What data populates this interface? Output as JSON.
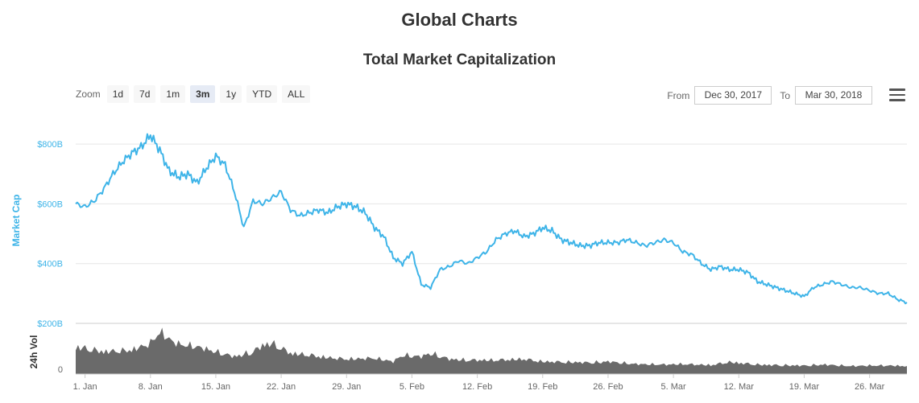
{
  "page": {
    "title": "Global Charts"
  },
  "toolbar": {
    "zoom_label": "Zoom",
    "zoom_buttons": [
      "1d",
      "7d",
      "1m",
      "3m",
      "1y",
      "YTD",
      "ALL"
    ],
    "active_zoom": "3m",
    "from_label": "From",
    "from_value": "Dec 30, 2017",
    "to_label": "To",
    "to_value": "Mar 30, 2018",
    "menu_icon": "hamburger-menu-icon"
  },
  "colors": {
    "line": "#3eb4e8",
    "volume": "#6a6a6a",
    "axis_label": "#3eb4e8",
    "grid": "#e6e6e6"
  },
  "chart_data": {
    "type": "line",
    "title": "Total Market Capitalization",
    "xlabel": "",
    "ylabel": "Market Cap",
    "ylim": [
      200,
      900
    ],
    "y_unit": "B USD",
    "y_ticks": [
      200,
      400,
      600,
      800
    ],
    "y_tick_labels": [
      "$200B",
      "$400B",
      "$600B",
      "$800B"
    ],
    "x_ticks": [
      {
        "day": 1,
        "label": "1. Jan"
      },
      {
        "day": 8,
        "label": "8. Jan"
      },
      {
        "day": 15,
        "label": "15. Jan"
      },
      {
        "day": 22,
        "label": "22. Jan"
      },
      {
        "day": 29,
        "label": "29. Jan"
      },
      {
        "day": 36,
        "label": "5. Feb"
      },
      {
        "day": 43,
        "label": "12. Feb"
      },
      {
        "day": 50,
        "label": "19. Feb"
      },
      {
        "day": 57,
        "label": "26. Feb"
      },
      {
        "day": 64,
        "label": "5. Mar"
      },
      {
        "day": 71,
        "label": "12. Mar"
      },
      {
        "day": 78,
        "label": "19. Mar"
      },
      {
        "day": 85,
        "label": "26. Mar"
      }
    ],
    "x_range_days": [
      0,
      89
    ],
    "series": [
      {
        "name": "Market Cap",
        "x": [
          0,
          1,
          2,
          3,
          4,
          5,
          6,
          7,
          8,
          9,
          10,
          11,
          12,
          13,
          14,
          15,
          16,
          17,
          18,
          19,
          20,
          21,
          22,
          23,
          24,
          25,
          26,
          27,
          28,
          29,
          30,
          31,
          32,
          33,
          34,
          35,
          36,
          37,
          38,
          39,
          40,
          41,
          42,
          43,
          44,
          45,
          46,
          47,
          48,
          49,
          50,
          51,
          52,
          53,
          54,
          55,
          56,
          57,
          58,
          59,
          60,
          61,
          62,
          63,
          64,
          65,
          66,
          67,
          68,
          69,
          70,
          71,
          72,
          73,
          74,
          75,
          76,
          77,
          78,
          79,
          80,
          81,
          82,
          83,
          84,
          85,
          86,
          87,
          88,
          89
        ],
        "values": [
          600,
          590,
          610,
          650,
          700,
          740,
          770,
          790,
          830,
          780,
          710,
          690,
          700,
          670,
          720,
          760,
          730,
          640,
          520,
          610,
          600,
          620,
          640,
          580,
          560,
          570,
          580,
          570,
          590,
          600,
          590,
          570,
          520,
          490,
          420,
          400,
          440,
          330,
          320,
          380,
          390,
          410,
          400,
          420,
          440,
          480,
          500,
          510,
          490,
          500,
          520,
          510,
          480,
          470,
          460,
          460,
          470,
          470,
          470,
          480,
          470,
          460,
          470,
          480,
          470,
          440,
          430,
          400,
          380,
          390,
          380,
          380,
          370,
          340,
          330,
          320,
          310,
          300,
          290,
          320,
          330,
          340,
          330,
          320,
          320,
          310,
          300,
          300,
          280,
          270
        ]
      }
    ],
    "volume": {
      "name": "24h Vol",
      "ylim": [
        0,
        100
      ],
      "y_tick_labels": [
        "0"
      ],
      "x": [
        0,
        3,
        6,
        8,
        9,
        10,
        11,
        13,
        15,
        17,
        19,
        20,
        21,
        22,
        23,
        25,
        27,
        29,
        32,
        34,
        35,
        37,
        38,
        40,
        42,
        45,
        48,
        50,
        53,
        55,
        57,
        60,
        63,
        65,
        68,
        70,
        73,
        75,
        78,
        80,
        83,
        85,
        87,
        89
      ],
      "values": [
        55,
        45,
        48,
        62,
        85,
        70,
        60,
        55,
        45,
        35,
        45,
        58,
        62,
        52,
        42,
        38,
        33,
        30,
        32,
        25,
        38,
        35,
        42,
        30,
        28,
        28,
        30,
        25,
        24,
        23,
        25,
        20,
        19,
        20,
        18,
        24,
        19,
        18,
        17,
        19,
        16,
        17,
        17,
        16
      ]
    }
  }
}
